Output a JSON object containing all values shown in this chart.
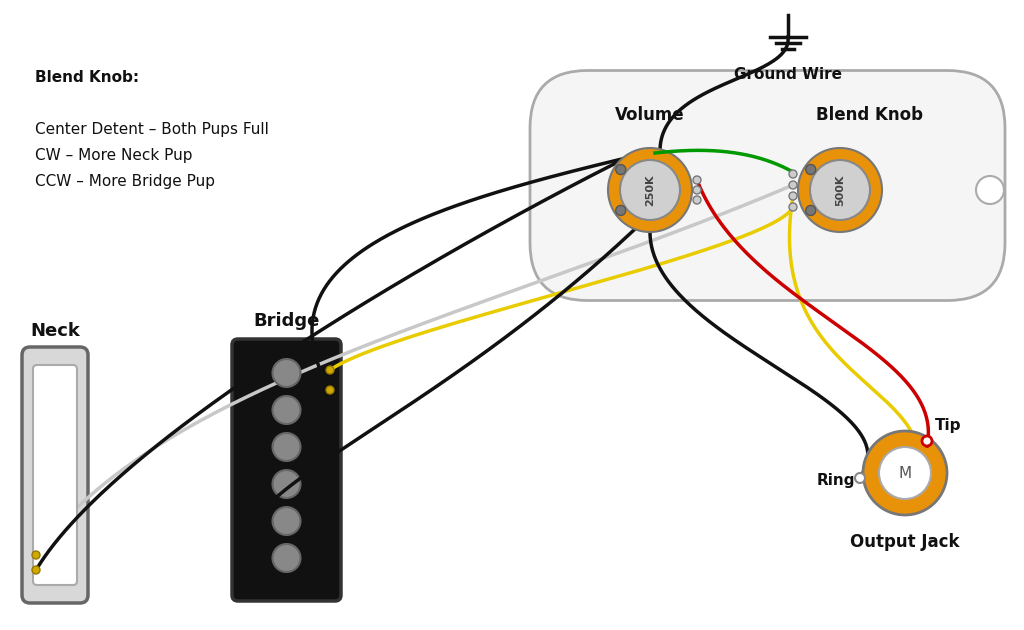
{
  "bg_color": "#ffffff",
  "text_color": "#111111",
  "blend_knob_text": [
    "Blend Knob:",
    "",
    "Center Detent – Both Pups Full",
    "CW – More Neck Pup",
    "CCW – More Bridge Pup"
  ],
  "labels": {
    "neck": "Neck",
    "bridge": "Bridge",
    "volume": "Volume",
    "blend_knob": "Blend Knob",
    "ground_wire": "Ground Wire",
    "output_jack": "Output Jack",
    "tip": "Tip",
    "ring": "Ring"
  },
  "colors": {
    "black": "#111111",
    "white_wire": "#c8c8c8",
    "yellow": "#e8cc00",
    "red": "#cc0000",
    "green": "#009900",
    "orange_pot": "#e8920a",
    "plate_fill": "#f5f5f5",
    "plate_stroke": "#aaaaaa"
  }
}
